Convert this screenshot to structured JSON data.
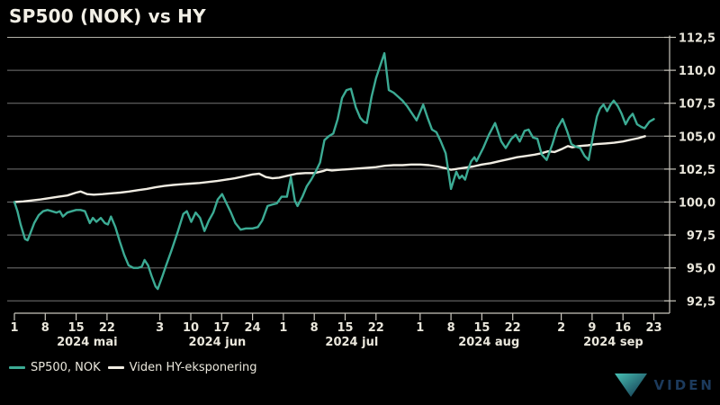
{
  "page": {
    "background": "#000000"
  },
  "colors": {
    "teal": "#3cab94",
    "cream_line": "#f0ece2",
    "text": "#eae7dc",
    "grid": "#757575",
    "grid_top": "#b5b2a9",
    "axis": "#c9c6bd",
    "logo_navy": "#1c3a5c"
  },
  "legend": {
    "items": [
      {
        "label": "SP500, NOK",
        "color": "#3cab94"
      },
      {
        "label": "Viden HY-eksponering",
        "color": "#f0ece2"
      }
    ]
  },
  "branding": {
    "logo_text": "VIDEN",
    "text_color": "#1c3a5c",
    "triangle_colors": [
      "#48c2b5",
      "#0f2c47"
    ]
  },
  "chart_data": {
    "type": "line",
    "title": "SP500 (NOK) vs HY",
    "x_unit": "days since 2024-05-01",
    "x_range_dates": [
      "2024-05-01",
      "2024-09-23"
    ],
    "grid": true,
    "legend_position": "bottom-left",
    "y_axis": {
      "side": "right",
      "ylim": [
        92.5,
        112.5
      ],
      "ticks": [
        {
          "value": 112.5,
          "label": "112,5"
        },
        {
          "value": 110.0,
          "label": "110,0"
        },
        {
          "value": 107.5,
          "label": "107,5"
        },
        {
          "value": 105.0,
          "label": "105,0"
        },
        {
          "value": 102.5,
          "label": "102,5"
        },
        {
          "value": 100.0,
          "label": "100,0"
        },
        {
          "value": 97.5,
          "label": "97,5"
        },
        {
          "value": 95.0,
          "label": "95,0"
        },
        {
          "value": 92.5,
          "label": "92,5"
        }
      ]
    },
    "x_axis": {
      "weeks": [
        {
          "d": 0,
          "label": "1"
        },
        {
          "d": 7,
          "label": "8"
        },
        {
          "d": 14,
          "label": "15"
        },
        {
          "d": 21,
          "label": "22"
        },
        {
          "d": 33,
          "label": "3"
        },
        {
          "d": 40,
          "label": "10"
        },
        {
          "d": 47,
          "label": "17"
        },
        {
          "d": 54,
          "label": "24"
        },
        {
          "d": 61,
          "label": "1"
        },
        {
          "d": 68,
          "label": "8"
        },
        {
          "d": 75,
          "label": "15"
        },
        {
          "d": 82,
          "label": "22"
        },
        {
          "d": 92,
          "label": "1"
        },
        {
          "d": 99,
          "label": "8"
        },
        {
          "d": 106,
          "label": "15"
        },
        {
          "d": 113,
          "label": "22"
        },
        {
          "d": 124,
          "label": "2"
        },
        {
          "d": 131,
          "label": "9"
        },
        {
          "d": 138,
          "label": "16"
        },
        {
          "d": 145,
          "label": "23"
        }
      ],
      "months": [
        {
          "label": "2024 mai",
          "center_d": 16.5
        },
        {
          "label": "2024 jun",
          "center_d": 46.0
        },
        {
          "label": "2024 jul",
          "center_d": 76.5
        },
        {
          "label": "2024 aug",
          "center_d": 107.6
        },
        {
          "label": "2024 sep",
          "center_d": 135.8
        }
      ]
    },
    "series": [
      {
        "name": "SP500, NOK",
        "color": "#3cab94",
        "points": [
          [
            0,
            100.0
          ],
          [
            0.7,
            99.3
          ],
          [
            1.4,
            98.3
          ],
          [
            2.4,
            97.2
          ],
          [
            3.0,
            97.1
          ],
          [
            3.6,
            97.6
          ],
          [
            4.5,
            98.4
          ],
          [
            5.5,
            99.0
          ],
          [
            6.5,
            99.3
          ],
          [
            7.5,
            99.4
          ],
          [
            8.5,
            99.3
          ],
          [
            9.5,
            99.2
          ],
          [
            10.3,
            99.3
          ],
          [
            11.0,
            98.9
          ],
          [
            12.0,
            99.2
          ],
          [
            13.0,
            99.3
          ],
          [
            14.0,
            99.4
          ],
          [
            15.0,
            99.4
          ],
          [
            16.0,
            99.3
          ],
          [
            17.1,
            98.4
          ],
          [
            17.8,
            98.8
          ],
          [
            18.6,
            98.5
          ],
          [
            19.6,
            98.8
          ],
          [
            20.5,
            98.4
          ],
          [
            21.2,
            98.3
          ],
          [
            21.9,
            98.9
          ],
          [
            22.9,
            98.1
          ],
          [
            23.9,
            97.0
          ],
          [
            24.9,
            96.0
          ],
          [
            25.9,
            95.2
          ],
          [
            27.0,
            95.0
          ],
          [
            28.0,
            95.0
          ],
          [
            28.9,
            95.1
          ],
          [
            29.5,
            95.6
          ],
          [
            30.3,
            95.2
          ],
          [
            31.1,
            94.4
          ],
          [
            32.0,
            93.6
          ],
          [
            32.5,
            93.4
          ],
          [
            33.6,
            94.4
          ],
          [
            34.3,
            95.1
          ],
          [
            35.6,
            96.3
          ],
          [
            37.0,
            97.7
          ],
          [
            38.3,
            99.1
          ],
          [
            39.1,
            99.3
          ],
          [
            40.1,
            98.5
          ],
          [
            41.1,
            99.2
          ],
          [
            42.1,
            98.8
          ],
          [
            43.1,
            97.8
          ],
          [
            44.1,
            98.6
          ],
          [
            45.1,
            99.2
          ],
          [
            46.1,
            100.2
          ],
          [
            47.1,
            100.6
          ],
          [
            48.1,
            99.9
          ],
          [
            49.1,
            99.2
          ],
          [
            50.1,
            98.4
          ],
          [
            51.3,
            97.9
          ],
          [
            52.5,
            98.0
          ],
          [
            54.0,
            98.0
          ],
          [
            55.2,
            98.1
          ],
          [
            56.2,
            98.6
          ],
          [
            57.4,
            99.7
          ],
          [
            58.4,
            99.8
          ],
          [
            59.5,
            99.9
          ],
          [
            60.6,
            100.4
          ],
          [
            61.8,
            100.4
          ],
          [
            62.7,
            101.9
          ],
          [
            63.6,
            100.1
          ],
          [
            64.2,
            99.7
          ],
          [
            65.3,
            100.4
          ],
          [
            66.3,
            101.2
          ],
          [
            67.3,
            101.7
          ],
          [
            68.3,
            102.3
          ],
          [
            69.3,
            103.0
          ],
          [
            70.3,
            104.7
          ],
          [
            71.3,
            105.0
          ],
          [
            72.3,
            105.2
          ],
          [
            73.3,
            106.3
          ],
          [
            74.3,
            107.9
          ],
          [
            75.3,
            108.5
          ],
          [
            76.3,
            108.6
          ],
          [
            77.4,
            107.2
          ],
          [
            78.4,
            106.4
          ],
          [
            79.2,
            106.1
          ],
          [
            79.9,
            106.0
          ],
          [
            81.0,
            108.0
          ],
          [
            82.0,
            109.4
          ],
          [
            83.0,
            110.4
          ],
          [
            83.9,
            111.3
          ],
          [
            84.9,
            108.5
          ],
          [
            86.0,
            108.3
          ],
          [
            87.0,
            108.0
          ],
          [
            88.0,
            107.7
          ],
          [
            89.0,
            107.3
          ],
          [
            90.0,
            106.8
          ],
          [
            91.2,
            106.2
          ],
          [
            92.7,
            107.4
          ],
          [
            93.7,
            106.4
          ],
          [
            94.7,
            105.5
          ],
          [
            95.7,
            105.3
          ],
          [
            96.7,
            104.6
          ],
          [
            97.8,
            103.7
          ],
          [
            99.0,
            101.0
          ],
          [
            100.2,
            102.3
          ],
          [
            100.9,
            101.8
          ],
          [
            101.5,
            102.0
          ],
          [
            102.2,
            101.7
          ],
          [
            102.9,
            102.5
          ],
          [
            103.6,
            103.1
          ],
          [
            104.3,
            103.4
          ],
          [
            104.8,
            103.1
          ],
          [
            106.3,
            104.1
          ],
          [
            107.6,
            105.1
          ],
          [
            109.0,
            106.0
          ],
          [
            110.4,
            104.6
          ],
          [
            111.4,
            104.1
          ],
          [
            112.7,
            104.8
          ],
          [
            113.7,
            105.1
          ],
          [
            114.6,
            104.6
          ],
          [
            115.7,
            105.4
          ],
          [
            116.6,
            105.5
          ],
          [
            117.6,
            104.9
          ],
          [
            118.6,
            104.8
          ],
          [
            119.6,
            103.6
          ],
          [
            120.7,
            103.2
          ],
          [
            122.0,
            104.4
          ],
          [
            123.1,
            105.6
          ],
          [
            124.3,
            106.3
          ],
          [
            125.3,
            105.4
          ],
          [
            126.3,
            104.4
          ],
          [
            127.3,
            104.2
          ],
          [
            128.3,
            104.1
          ],
          [
            129.3,
            103.5
          ],
          [
            130.2,
            103.2
          ],
          [
            131.3,
            105.2
          ],
          [
            132.1,
            106.5
          ],
          [
            132.8,
            107.1
          ],
          [
            133.6,
            107.4
          ],
          [
            134.4,
            106.9
          ],
          [
            135.2,
            107.4
          ],
          [
            135.9,
            107.7
          ],
          [
            136.8,
            107.3
          ],
          [
            137.7,
            106.7
          ],
          [
            138.6,
            105.9
          ],
          [
            139.4,
            106.4
          ],
          [
            140.2,
            106.7
          ],
          [
            141.2,
            105.9
          ],
          [
            142.2,
            105.7
          ],
          [
            142.9,
            105.6
          ],
          [
            144.0,
            106.1
          ],
          [
            145.0,
            106.3
          ]
        ]
      },
      {
        "name": "Viden HY-eksponering",
        "color": "#f0ece2",
        "points": [
          [
            0,
            100.0
          ],
          [
            2,
            100.05
          ],
          [
            4,
            100.12
          ],
          [
            6,
            100.2
          ],
          [
            8,
            100.3
          ],
          [
            10,
            100.4
          ],
          [
            12,
            100.5
          ],
          [
            14,
            100.72
          ],
          [
            15,
            100.8
          ],
          [
            16.5,
            100.6
          ],
          [
            18,
            100.56
          ],
          [
            20,
            100.6
          ],
          [
            22,
            100.66
          ],
          [
            24,
            100.72
          ],
          [
            26,
            100.8
          ],
          [
            28,
            100.9
          ],
          [
            30,
            101.0
          ],
          [
            32,
            101.12
          ],
          [
            34,
            101.22
          ],
          [
            36,
            101.3
          ],
          [
            38,
            101.35
          ],
          [
            40,
            101.4
          ],
          [
            42,
            101.45
          ],
          [
            44,
            101.52
          ],
          [
            46,
            101.6
          ],
          [
            48,
            101.7
          ],
          [
            50,
            101.8
          ],
          [
            52,
            101.95
          ],
          [
            54,
            102.1
          ],
          [
            55.5,
            102.15
          ],
          [
            57,
            101.9
          ],
          [
            58.5,
            101.8
          ],
          [
            60,
            101.85
          ],
          [
            62,
            102.0
          ],
          [
            64,
            102.15
          ],
          [
            66,
            102.2
          ],
          [
            68,
            102.2
          ],
          [
            70,
            102.35
          ],
          [
            70.8,
            102.45
          ],
          [
            72,
            102.4
          ],
          [
            74,
            102.45
          ],
          [
            76,
            102.5
          ],
          [
            78,
            102.55
          ],
          [
            80,
            102.6
          ],
          [
            82,
            102.65
          ],
          [
            84,
            102.75
          ],
          [
            86,
            102.8
          ],
          [
            88,
            102.8
          ],
          [
            90,
            102.85
          ],
          [
            92,
            102.85
          ],
          [
            94,
            102.8
          ],
          [
            96,
            102.7
          ],
          [
            98,
            102.55
          ],
          [
            99,
            102.45
          ],
          [
            100,
            102.5
          ],
          [
            102,
            102.6
          ],
          [
            104,
            102.7
          ],
          [
            106,
            102.85
          ],
          [
            108,
            102.95
          ],
          [
            110,
            103.1
          ],
          [
            112,
            103.25
          ],
          [
            114,
            103.4
          ],
          [
            116,
            103.5
          ],
          [
            118,
            103.6
          ],
          [
            119.5,
            103.7
          ],
          [
            121,
            103.85
          ],
          [
            122.5,
            103.8
          ],
          [
            124,
            104.0
          ],
          [
            125.5,
            104.25
          ],
          [
            126.5,
            104.15
          ],
          [
            128,
            104.25
          ],
          [
            130,
            104.3
          ],
          [
            132,
            104.4
          ],
          [
            134,
            104.45
          ],
          [
            136,
            104.5
          ],
          [
            138,
            104.6
          ],
          [
            140,
            104.75
          ],
          [
            141.5,
            104.85
          ],
          [
            143,
            105.0
          ]
        ]
      }
    ]
  }
}
